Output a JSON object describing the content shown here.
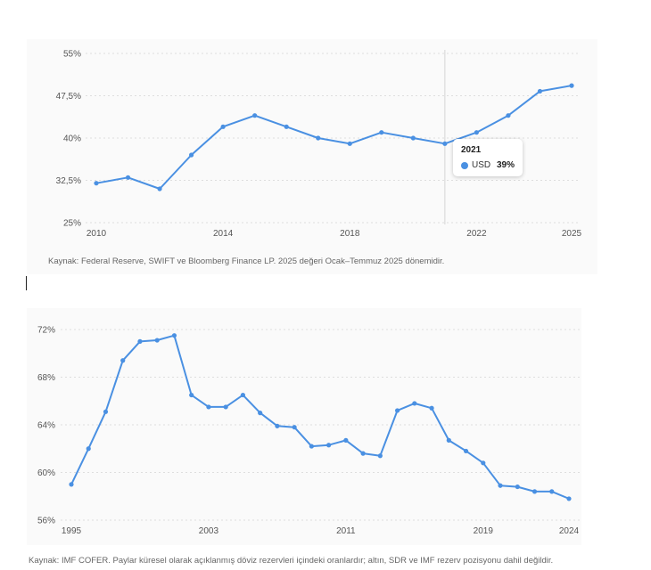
{
  "chart_data": [
    {
      "type": "line",
      "title": "",
      "xlabel": "",
      "ylabel": "",
      "x": [
        2010,
        2011,
        2012,
        2013,
        2014,
        2015,
        2016,
        2017,
        2018,
        2019,
        2020,
        2021,
        2022,
        2023,
        2024,
        2025
      ],
      "series": [
        {
          "name": "USD",
          "color": "#4a90e2",
          "values": [
            32,
            33,
            31,
            37,
            42,
            44,
            42,
            40,
            39,
            41,
            40,
            39,
            41,
            44,
            48.3,
            49.3
          ]
        }
      ],
      "ylim": [
        25,
        55
      ],
      "yticks": [
        25,
        32.5,
        40,
        47.5,
        55
      ],
      "ytick_labels": [
        "25%",
        "32,5%",
        "40%",
        "47,5%",
        "55%"
      ],
      "xlim": [
        2010,
        2025
      ],
      "xticks": [
        2010,
        2014,
        2018,
        2022,
        2025
      ],
      "xtick_labels": [
        "2010",
        "2014",
        "2018",
        "2022",
        "2025"
      ],
      "grid": true,
      "hover": {
        "x": 2021,
        "title": "2021",
        "series": "USD",
        "value_label": "39%"
      },
      "source": "Kaynak: Federal Reserve, SWIFT ve Bloomberg Finance LP. 2025 değeri Ocak–Temmuz 2025 dönemidir."
    },
    {
      "type": "line",
      "title": "",
      "xlabel": "",
      "ylabel": "",
      "x": [
        1995,
        1996,
        1997,
        1998,
        1999,
        2000,
        2001,
        2002,
        2003,
        2004,
        2005,
        2006,
        2007,
        2008,
        2009,
        2010,
        2011,
        2012,
        2013,
        2014,
        2015,
        2016,
        2017,
        2018,
        2019,
        2020,
        2021,
        2022,
        2023,
        2024
      ],
      "series": [
        {
          "name": "",
          "color": "#4a90e2",
          "values": [
            59,
            62,
            65.1,
            69.4,
            71,
            71.1,
            71.5,
            66.5,
            65.5,
            65.5,
            66.5,
            65,
            63.9,
            63.8,
            62.2,
            62.3,
            62.7,
            61.6,
            61.4,
            65.2,
            65.8,
            65.4,
            62.7,
            61.8,
            60.8,
            58.9,
            58.8,
            58.4,
            58.4,
            57.8
          ]
        }
      ],
      "ylim": [
        56,
        72
      ],
      "yticks": [
        56,
        60,
        64,
        68,
        72
      ],
      "ytick_labels": [
        "56%",
        "60%",
        "64%",
        "68%",
        "72%"
      ],
      "xlim": [
        1995,
        2024
      ],
      "xticks": [
        1995,
        2003,
        2011,
        2019,
        2024
      ],
      "xtick_labels": [
        "1995",
        "2003",
        "2011",
        "2019",
        "2024"
      ],
      "grid": true,
      "source": "Kaynak: IMF COFER. Paylar küresel olarak açıklanmış döviz rezervleri içindeki oranlardır; altın, SDR ve IMF rezerv pozisyonu dahil değildir."
    }
  ]
}
